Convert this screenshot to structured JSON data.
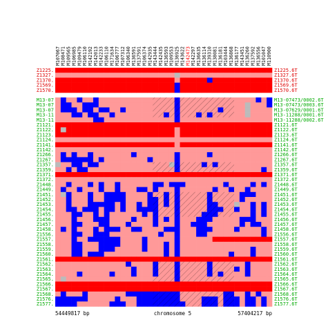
{
  "chart_data": {
    "type": "heatmap",
    "title": "",
    "xlabel": "chromosome 5",
    "x_start_label": "54449817 bp",
    "x_end_label": "57404217 bp",
    "legend": "none",
    "grid": false,
    "colors": {
      "homozygous_a": "#ff0000",
      "heterozygous": "#ff9999",
      "homozygous_b": "#0000ff",
      "missing": "#bbbbbb",
      "separator": "#ffffff"
    },
    "markers": [
      "M107067",
      "M108471",
      "M109565",
      "M106985",
      "M109479",
      "M106110",
      "M142192",
      "M142013",
      "M142233",
      "M106110",
      "M171634",
      "M106777",
      "M107312",
      "M106340",
      "M136591",
      "M137591",
      "M106374",
      "M142935",
      "M143444",
      "M142435",
      "M136593",
      "M109553",
      "M136925",
      "M143622",
      "M142473",
      "M142297",
      "M136635",
      "M136114",
      "M139310",
      "M138081",
      "M136181",
      "M103444",
      "M136868",
      "M136177",
      "M143451",
      "M136260",
      "M137592",
      "M136556",
      "M101047",
      "M110900"
    ],
    "marker_highlight_index": 24,
    "samples_top": [
      "Z1225.6T",
      "Z1327.6T",
      "Z1370.6T",
      "Z1569.6T",
      "Z1570.6T"
    ],
    "samples_bottom": [
      "M13-07473/0002.6T",
      "M13-07473/0003.6T",
      "M13-07629/0001.6T",
      "M13-11288/0001.6T",
      "M13-11288/0002.6T",
      "Z1121.6T",
      "Z1122.6T",
      "Z1123.6T",
      "Z1124.6T",
      "Z1141.6T",
      "Z1142.6T",
      "Z1266.6T",
      "Z1267.6T",
      "Z1357.6T",
      "Z1359.6T",
      "Z1371.6T",
      "Z1372.6T",
      "Z1448.6T",
      "Z1449.6T",
      "Z1451.6T",
      "Z1452.6T",
      "Z1453.6T",
      "Z1454.6T",
      "Z1455.6T",
      "Z1456.6T",
      "Z1457.6T",
      "Z1458.6T",
      "Z1556.6T",
      "Z1557.6T",
      "Z1558.6T",
      "Z1559.6T",
      "Z1560.6T",
      "Z1561.6T",
      "Z1562.6T",
      "Z1563.6T",
      "Z1564.6T",
      "Z1565.6T",
      "Z1566.6T",
      "Z1567.6T",
      "Z1568.6T",
      "Z1576.6T",
      "Z1577.6T"
    ],
    "samples_bottom_left_labels": [
      "M13-07",
      "M13-07",
      "M13-07",
      "M13-11",
      "M13-11",
      "Z1121.",
      "Z1122.",
      "Z1123.",
      "Z1124.",
      "Z1141.",
      "Z1142.",
      "Z1266.",
      "Z1267.",
      "Z1357.",
      "Z1359.",
      "Z1371.",
      "Z1372.",
      "Z1448.",
      "Z1449.",
      "Z1451.",
      "Z1452.",
      "Z1453.",
      "Z1454.",
      "Z1455.",
      "Z1456.",
      "Z1457.",
      "Z1458.",
      "Z1556.",
      "Z1557.",
      "Z1558.",
      "Z1559.",
      "Z1560.",
      "Z1561.",
      "Z1562.",
      "Z1563.",
      "Z1564.",
      "Z1565.",
      "Z1566.",
      "Z1567.",
      "Z1568.",
      "Z1576.",
      "Z1577."
    ],
    "samples_top_left_labels": [
      "Z1225.",
      "Z1327.",
      "Z1370.",
      "Z1569.",
      "Z1570."
    ],
    "matrix_top": [
      "AAAAAAAAAAAAAAAAAAAAAAAAAAAAAAAAAAAAAAAA",
      "HHHHHHHHHHHHHHHHHHHHHHMHHHHHHHHHHHHHHHHH",
      "AAAAAAAAAAAAAAAAAAAAAAHAAAAABAAAAAAAAAAA",
      "AAAAAAAAAAAAAAAAAAAAAABAAAAAAAAAAAAAAAAA",
      "AAAAAAAAAAAAAAAAAAAAAABAAAAAAAAAAAAAAAAA"
    ],
    "matrix_bottom": [
      "HBHHBHHBHHHHHHHHHHHHHHBHHHHHHHHHHHHHHBHB",
      "HBBHHBBBHHHHHHHHHHHHHHBHHHHHHHHHHHHMHHHB",
      "HBBBHBBHBBHHBHHHHHHHHHBHHHHHHHBHHHHMHHHH",
      "HHHBBHBBHHBHHHHHHHHHBHBHHHBHBHHHHHHMHHHH",
      "HHHHHHHBBHHHHHHHHHHHHHBHHHHHHHHHHHHHHHHH",
      "AAAAAAAAAAAAAAAAAAAAAAAAAAAAAAAAAAAAAAAA",
      "AMAAAAAAAAAAAAAAAAAAAAHAAAAAAAAAAAAAAAAA",
      "AAAAAAAAAAAAAAAAAAAAAAHAAAAAAAAAAAAAAAAA",
      "HHHHHHHHHHHHHHHHHHHHHHHHHHHHHHHHHHHHHHHH",
      "AAAAAAAAAAAAAAAAAAAAAAHAAAAAAAAAAAAAAAAA",
      "HHHHHHHHHHHHHHHHHHHHHHHHHHHHHHHHHHHHHHHH",
      "HBHBHHBHHHHHHHBHHHHHHHBHHHHHBHHHHHHHHHHH",
      "HBBBBBBHBHHHHHHHHBHHHHBHHHHHHHHHHHHHHHHH",
      "MHHBBHBBHHHHHHHHHHHHHMBHHHHBHBHHHHHHHHHH",
      "HHBHBBHHHHHHHHHHHHHHHHBHHHHHHHHHHHHHHHBH",
      "AAAAAAAAAAAAAAAAAAAAAAAAAAAAAAAAAAAAAAAA",
      "HHHHHHHHHHHHHHHHHHHHHHHHHHHHHHHHHHHHHHHH",
      "HHBHHHBHBHHBHHHHHHBBHBBBHHHHHHHBHHHHBHBH",
      "HBHHBHHHBHHBHHHBBHBHHHBHHHHHHBHHBHHBHHHH",
      "HMBHHHBHHBBBBHHHHBHHBHBHHHHHBHHHHHBBBHHH",
      "HHBHHHBHHBBBBHHHHBBHBHBHHHHHBHHHHHBHHHHH",
      "HHBHHHBBBBBHBHHBHBBHBHBHHHHHBBHHHMHHBHBH",
      "HHBBHBBBHBBHBHHBBBBHHHBHHHHHBBBHHBHHBHBH",
      "HHHBBHHBHBHHHHHHBHBHHHBHHHHBBBHHHHHHBHBH",
      "HHHBHHHBBBHHHHBHHHBHBHBHHHBBBHHHHHBBBHHH",
      "HHHBBHHHBBHHHBHHHHBHHHBHHBBBHHHHHHBHBBHH",
      "HBHBHHHBHBBBHHBBHHHHBBBHHHBBBHHHHBHHHHBH",
      "HHHBBHHBBBHHHHHHHHHBHHBHHHBBHHHHHHHHHHBH",
      "HHHBHHBBBBBBHHHHBHHHHHBHHHHHHAAAAAAAAAAA",
      "HHHBBHHHBBBBHHHHBHHHBHBHHHHHHHHHHHHHHHHH",
      "HHHBBHHHBBBHHHHHBHHHBHBHHHHHHHHHHHHHBHHH",
      "HHHBBHBBBHHHHHHHHHHHBHBHHHHHHHHHBHHHBHHH",
      "AAAAAAAAAAAAAAAAAAAAAAAAAAAAAAAAAAAAAAAA",
      "HHHHHHHHHHHHHBHHHHBHHHBHHHHHBHHHHHHBHHHH",
      "HHHHHHHHHHHHHHBHHHBHHHBHHHHHBHHHHBHBHHHH",
      "HHHHBHHHHHBHHHBHHHBHHHBHHHHHBHBHHHHBHHHH",
      "HMHHHHHHHHHHHHHHHHHHHHBHHHHHHHHHHHHHHHHH",
      "AAAAAAAAAAAAAAAAAAAAAAAAAAAAAAAAAAAAAAAA",
      "AAAAAAAAAAAAAAAAAAAAAAAAAAAAAAAAAAAAAAAA",
      "HBHHHBHHHHHHHBBBBBBBBBBHHHHHHHHBBHHBHBHH",
      "BBBBBBHHHHHBHHHBBBBBBBBHHHHBBBHBBBHBBHBH",
      "BBBBHHHHHHBBBHHBBBBBBBBBHHHBBBHBBBHBBHBH"
    ],
    "hatched_rows_bottom": [
      0,
      1,
      2,
      3,
      13,
      14,
      19,
      20,
      21,
      22,
      23,
      33,
      34,
      35,
      36,
      39,
      40,
      41
    ],
    "hatch_range": [
      18,
      33
    ]
  }
}
